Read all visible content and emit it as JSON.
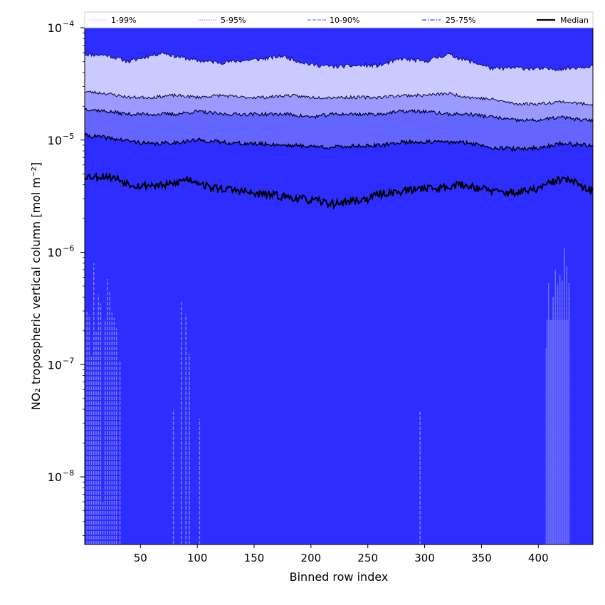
{
  "chart_data": {
    "type": "area",
    "title": "",
    "xlabel": "Binned row index",
    "ylabel": "NO₂ tropospheric vertical column [mol m⁻²]",
    "x_range": [
      1,
      448
    ],
    "ylim": [
      2.5e-09,
      0.0001
    ],
    "yscale": "log",
    "x_ticks": [
      50,
      100,
      150,
      200,
      250,
      300,
      350,
      400
    ],
    "y_ticks": [
      {
        "exp": -8,
        "label_base": "10",
        "label_exp": "−8"
      },
      {
        "exp": -7,
        "label_base": "10",
        "label_exp": "−7"
      },
      {
        "exp": -6,
        "label_base": "10",
        "label_exp": "−6"
      },
      {
        "exp": -5,
        "label_base": "10",
        "label_exp": "−5"
      },
      {
        "exp": -4,
        "label_base": "10",
        "label_exp": "−4"
      }
    ],
    "legend": {
      "placement": "top, above plot, 5 columns",
      "entries": [
        {
          "label": "1-99%",
          "style": "thin-solid",
          "color": "#c8c8ff"
        },
        {
          "label": "5-95%",
          "style": "dotted",
          "color": "#9c9cff"
        },
        {
          "label": "10-90%",
          "style": "dashed",
          "color": "#8a8aff"
        },
        {
          "label": "25-75%",
          "style": "dashdot",
          "color": "#5a5aff"
        },
        {
          "label": "Median",
          "style": "solid-thick",
          "color": "#000000"
        }
      ]
    },
    "colors": {
      "band_1_99": "#2d2dff",
      "band_5_95_outer": "#cacaff",
      "band_10_90_outer": "#9b9bff",
      "band_25_75_outer": "#6464ff",
      "band_core": "#2d2dff",
      "spike": "#7a7aff",
      "median": "#000000"
    },
    "series": [
      {
        "name": "95th percentile",
        "x": [
          1,
          20,
          40,
          60,
          70,
          80,
          100,
          120,
          140,
          160,
          175,
          190,
          200,
          220,
          240,
          260,
          280,
          300,
          320,
          330,
          340,
          350,
          360,
          380,
          400,
          420,
          440,
          448
        ],
        "values": [
          5.8e-05,
          5.7e-05,
          5e-05,
          5.7e-05,
          6e-05,
          5.6e-05,
          5.1e-05,
          4.9e-05,
          5.1e-05,
          5.3e-05,
          5.6e-05,
          5e-05,
          4.7e-05,
          4.5e-05,
          4.6e-05,
          4.6e-05,
          5.3e-05,
          5e-05,
          5.8e-05,
          5.4e-05,
          5e-05,
          4.7e-05,
          4.3e-05,
          4.4e-05,
          4.3e-05,
          4.3e-05,
          4.5e-05,
          4.6e-05
        ]
      },
      {
        "name": "90th percentile",
        "x": [
          1,
          20,
          40,
          60,
          80,
          100,
          120,
          140,
          160,
          180,
          200,
          220,
          240,
          260,
          280,
          300,
          320,
          340,
          360,
          380,
          400,
          420,
          440,
          448
        ],
        "values": [
          2.7e-05,
          2.6e-05,
          2.4e-05,
          2.4e-05,
          2.5e-05,
          2.4e-05,
          2.5e-05,
          2.4e-05,
          2.4e-05,
          2.5e-05,
          2.4e-05,
          2.4e-05,
          2.4e-05,
          2.4e-05,
          2.5e-05,
          2.5e-05,
          2.6e-05,
          2.4e-05,
          2.3e-05,
          2.1e-05,
          2.1e-05,
          2.2e-05,
          2.1e-05,
          2.1e-05
        ]
      },
      {
        "name": "75th percentile",
        "x": [
          1,
          20,
          40,
          60,
          80,
          100,
          120,
          140,
          160,
          180,
          200,
          220,
          240,
          260,
          280,
          300,
          320,
          340,
          360,
          380,
          400,
          420,
          440,
          448
        ],
        "values": [
          1.9e-05,
          1.8e-05,
          1.7e-05,
          1.7e-05,
          1.7e-05,
          1.8e-05,
          1.7e-05,
          1.7e-05,
          1.7e-05,
          1.7e-05,
          1.6e-05,
          1.7e-05,
          1.7e-05,
          1.7e-05,
          1.8e-05,
          1.8e-05,
          1.7e-05,
          1.7e-05,
          1.6e-05,
          1.5e-05,
          1.5e-05,
          1.6e-05,
          1.5e-05,
          1.5e-05
        ]
      },
      {
        "name": "25th percentile",
        "x": [
          1,
          20,
          40,
          60,
          80,
          100,
          120,
          140,
          160,
          180,
          200,
          220,
          240,
          260,
          280,
          300,
          320,
          340,
          360,
          380,
          400,
          420,
          440,
          448
        ],
        "values": [
          1.1e-05,
          1.05e-05,
          9.8e-06,
          9.2e-06,
          9.5e-06,
          1e-05,
          9.6e-06,
          9.3e-06,
          9.2e-06,
          9e-06,
          8.8e-06,
          8.6e-06,
          8.9e-06,
          8.9e-06,
          9.6e-06,
          9.6e-06,
          9.6e-06,
          9.4e-06,
          8.6e-06,
          8.3e-06,
          8.5e-06,
          9.3e-06,
          9.1e-06,
          8.8e-06
        ]
      },
      {
        "name": "Median",
        "x": [
          1,
          10,
          20,
          30,
          40,
          50,
          60,
          70,
          80,
          90,
          100,
          110,
          120,
          130,
          140,
          150,
          160,
          170,
          180,
          190,
          200,
          210,
          220,
          230,
          240,
          250,
          260,
          270,
          280,
          290,
          300,
          310,
          320,
          330,
          340,
          350,
          360,
          370,
          380,
          390,
          400,
          410,
          420,
          430,
          440,
          448
        ],
        "values": [
          4.8e-06,
          4.7e-06,
          4.8e-06,
          4.5e-06,
          4.1e-06,
          3.9e-06,
          4e-06,
          3.9e-06,
          4.1e-06,
          4.5e-06,
          4.3e-06,
          3.8e-06,
          3.7e-06,
          3.6e-06,
          3.5e-06,
          3.3e-06,
          3.3e-06,
          3.2e-06,
          3.1e-06,
          3e-06,
          2.9e-06,
          2.8e-06,
          2.7e-06,
          2.8e-06,
          2.9e-06,
          3e-06,
          3.3e-06,
          3.4e-06,
          3.5e-06,
          3.6e-06,
          3.8e-06,
          3.7e-06,
          3.9e-06,
          4e-06,
          3.9e-06,
          3.7e-06,
          3.5e-06,
          3.4e-06,
          3.4e-06,
          3.5e-06,
          3.7e-06,
          4.1e-06,
          4.5e-06,
          4.3e-06,
          3.7e-06,
          3.5e-06
        ]
      }
    ],
    "lower_spikes": [
      {
        "x": 3,
        "value": 3e-07
      },
      {
        "x": 5,
        "value": 2.8e-07
      },
      {
        "x": 7,
        "value": 1.2e-07
      },
      {
        "x": 9,
        "value": 8e-07
      },
      {
        "x": 11,
        "value": 2e-07
      },
      {
        "x": 13,
        "value": 4.2e-07
      },
      {
        "x": 15,
        "value": 3.5e-07
      },
      {
        "x": 17,
        "value": 6e-09
      },
      {
        "x": 19,
        "value": 2.5e-07
      },
      {
        "x": 21,
        "value": 5.8e-07
      },
      {
        "x": 23,
        "value": 4.5e-07
      },
      {
        "x": 25,
        "value": 2.9e-07
      },
      {
        "x": 27,
        "value": 2.6e-07
      },
      {
        "x": 29,
        "value": 2.1e-07
      },
      {
        "x": 32,
        "value": 1.05e-07
      },
      {
        "x": 79,
        "value": 4e-08
      },
      {
        "x": 86,
        "value": 3.7e-07
      },
      {
        "x": 90,
        "value": 2.8e-07
      },
      {
        "x": 93,
        "value": 1.25e-07
      },
      {
        "x": 102,
        "value": 3.3e-08
      },
      {
        "x": 296,
        "value": 3.8e-08
      },
      {
        "x": 407,
        "value": 1.4e-07
      },
      {
        "x": 409,
        "value": 5.3e-07
      },
      {
        "x": 411,
        "value": 2.5e-07
      },
      {
        "x": 413,
        "value": 4e-07
      },
      {
        "x": 415,
        "value": 7e-07
      },
      {
        "x": 417,
        "value": 5.2e-07
      },
      {
        "x": 419,
        "value": 6.3e-07
      },
      {
        "x": 421,
        "value": 5.6e-07
      },
      {
        "x": 423,
        "value": 1.1e-06
      },
      {
        "x": 425,
        "value": 7.5e-07
      },
      {
        "x": 427,
        "value": 5.3e-07
      }
    ]
  }
}
